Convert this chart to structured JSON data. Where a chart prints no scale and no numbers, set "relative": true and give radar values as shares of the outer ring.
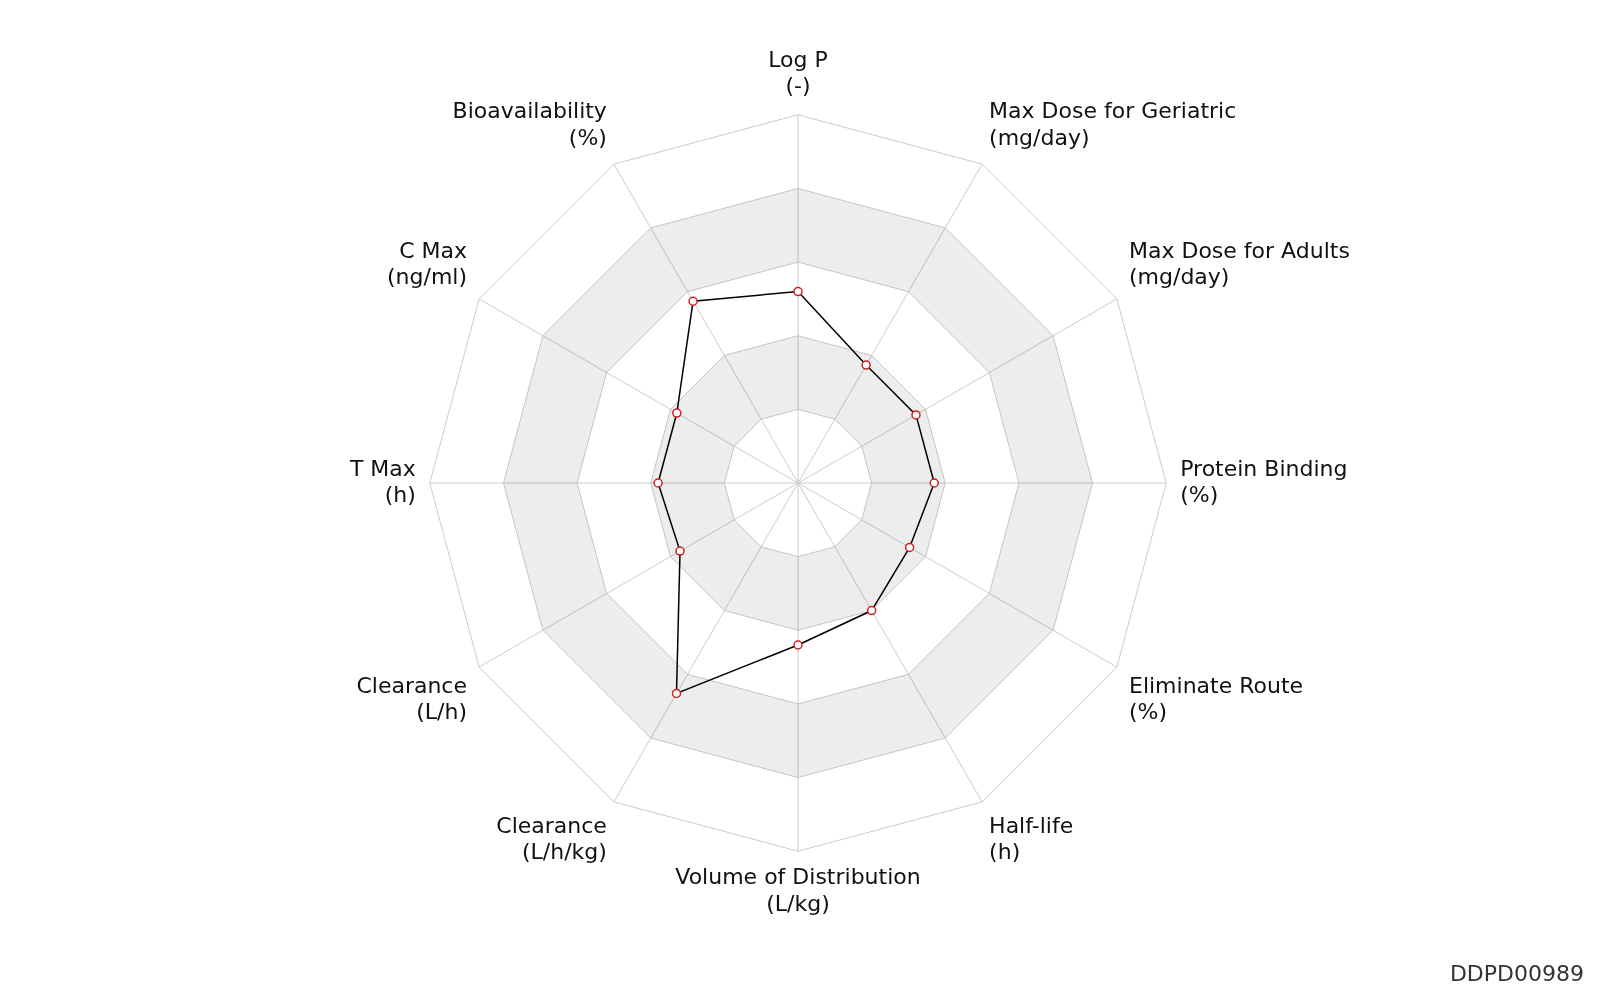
{
  "chart_data": {
    "type": "radar",
    "relative": true,
    "categories": [
      "Log P\n(-)",
      "Max Dose for Geriatric\n(mg/day)",
      "Max Dose for Adults\n(mg/day)",
      "Protein Binding\n(%)",
      "Eliminate Route\n(%)",
      "Half-life\n(h)",
      "Volume of Distribution\n(L/kg)",
      "Clearance\n(L/h/kg)",
      "Clearance\n(L/h)",
      "T Max\n(h)",
      "C Max\n(ng/ml)",
      "Bioavailability\n(%)"
    ],
    "series": [
      {
        "color": "#000000",
        "values": [
          0.52,
          0.37,
          0.37,
          0.37,
          0.35,
          0.4,
          0.44,
          0.66,
          0.37,
          0.38,
          0.38,
          0.57
        ]
      }
    ],
    "marker": "circle",
    "grid": true,
    "legend": false,
    "annotations": [
      "DDPD00989"
    ]
  }
}
